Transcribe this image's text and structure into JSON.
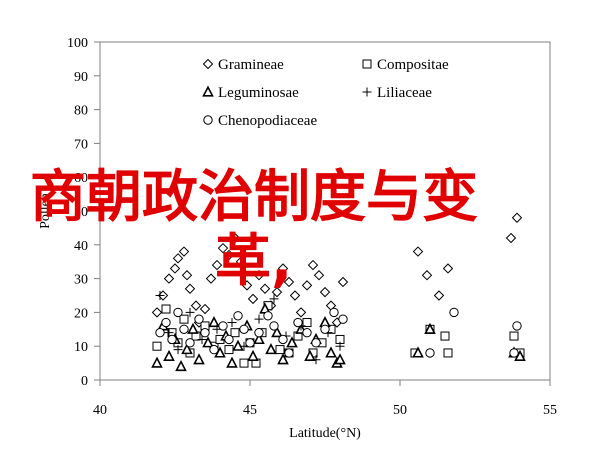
{
  "chart_data": {
    "type": "scatter",
    "xlabel": "Latitude(°N)",
    "ylabel": "Pollen",
    "xlim": [
      40,
      55
    ],
    "ylim": [
      0,
      100
    ],
    "xticks": [
      40,
      45,
      50,
      55
    ],
    "yticks": [
      0,
      10,
      20,
      30,
      40,
      50,
      60,
      70,
      80,
      90,
      100
    ],
    "grid": false,
    "legend_position": "top",
    "series": [
      {
        "name": "Gramineae",
        "marker": "diamond",
        "points": [
          [
            41.9,
            20
          ],
          [
            42.1,
            25
          ],
          [
            42.3,
            30
          ],
          [
            42.5,
            33
          ],
          [
            42.6,
            36
          ],
          [
            42.8,
            38
          ],
          [
            42.9,
            31
          ],
          [
            43.0,
            27
          ],
          [
            43.2,
            22
          ],
          [
            43.3,
            17
          ],
          [
            43.5,
            21
          ],
          [
            43.7,
            30
          ],
          [
            43.9,
            34
          ],
          [
            44.1,
            39
          ],
          [
            44.3,
            37
          ],
          [
            44.5,
            42
          ],
          [
            44.7,
            35
          ],
          [
            44.9,
            28
          ],
          [
            45.1,
            24
          ],
          [
            45.3,
            31
          ],
          [
            45.5,
            27
          ],
          [
            45.7,
            22
          ],
          [
            45.9,
            26
          ],
          [
            46.1,
            33
          ],
          [
            46.3,
            29
          ],
          [
            46.5,
            25
          ],
          [
            46.7,
            20
          ],
          [
            46.9,
            28
          ],
          [
            47.1,
            34
          ],
          [
            47.3,
            31
          ],
          [
            47.5,
            26
          ],
          [
            47.7,
            22
          ],
          [
            47.9,
            17
          ],
          [
            48.1,
            29
          ],
          [
            50.6,
            38
          ],
          [
            50.9,
            31
          ],
          [
            51.3,
            25
          ],
          [
            51.6,
            33
          ],
          [
            53.9,
            48
          ],
          [
            53.7,
            42
          ]
        ]
      },
      {
        "name": "Compositae",
        "marker": "square",
        "points": [
          [
            41.9,
            10
          ],
          [
            42.2,
            21
          ],
          [
            42.4,
            14
          ],
          [
            42.6,
            11
          ],
          [
            42.8,
            18
          ],
          [
            43.0,
            8
          ],
          [
            43.2,
            13
          ],
          [
            43.5,
            16
          ],
          [
            43.8,
            10
          ],
          [
            44.0,
            12
          ],
          [
            44.3,
            9
          ],
          [
            44.5,
            14
          ],
          [
            44.8,
            5
          ],
          [
            45.0,
            11
          ],
          [
            45.2,
            5
          ],
          [
            45.4,
            14
          ],
          [
            45.6,
            22
          ],
          [
            46.0,
            9
          ],
          [
            46.3,
            8
          ],
          [
            46.6,
            13
          ],
          [
            46.9,
            17
          ],
          [
            47.1,
            8
          ],
          [
            47.4,
            11
          ],
          [
            47.7,
            15
          ],
          [
            48.0,
            12
          ],
          [
            50.5,
            8
          ],
          [
            51.0,
            15
          ],
          [
            51.5,
            13
          ],
          [
            51.6,
            8
          ],
          [
            53.8,
            13
          ],
          [
            54.0,
            8
          ]
        ]
      },
      {
        "name": "Leguminosae",
        "marker": "triangle",
        "points": [
          [
            41.9,
            5
          ],
          [
            42.1,
            16
          ],
          [
            42.3,
            7
          ],
          [
            42.5,
            12
          ],
          [
            42.7,
            4
          ],
          [
            42.9,
            9
          ],
          [
            43.1,
            15
          ],
          [
            43.3,
            6
          ],
          [
            43.6,
            11
          ],
          [
            43.8,
            17
          ],
          [
            44.0,
            8
          ],
          [
            44.2,
            13
          ],
          [
            44.4,
            5
          ],
          [
            44.6,
            10
          ],
          [
            44.9,
            16
          ],
          [
            45.1,
            7
          ],
          [
            45.3,
            12
          ],
          [
            45.5,
            21
          ],
          [
            45.7,
            9
          ],
          [
            45.9,
            14
          ],
          [
            46.1,
            6
          ],
          [
            46.4,
            11
          ],
          [
            46.7,
            15
          ],
          [
            47.0,
            7
          ],
          [
            47.2,
            12
          ],
          [
            47.5,
            17
          ],
          [
            47.7,
            8
          ],
          [
            47.9,
            5
          ],
          [
            48.0,
            6
          ],
          [
            50.6,
            8
          ],
          [
            51.0,
            15
          ],
          [
            53.8,
            8
          ],
          [
            54.0,
            7
          ]
        ]
      },
      {
        "name": "Liliaceae",
        "marker": "plus",
        "points": [
          [
            42.0,
            25
          ],
          [
            42.3,
            14
          ],
          [
            42.6,
            9
          ],
          [
            43.0,
            20
          ],
          [
            43.4,
            12
          ],
          [
            43.9,
            15
          ],
          [
            44.4,
            17
          ],
          [
            44.8,
            10
          ],
          [
            45.3,
            18
          ],
          [
            45.8,
            24
          ],
          [
            46.2,
            13
          ],
          [
            46.7,
            16
          ],
          [
            47.2,
            6
          ],
          [
            47.6,
            14
          ],
          [
            48.0,
            10
          ]
        ]
      },
      {
        "name": "Chenopodiaceae",
        "marker": "circle",
        "points": [
          [
            42.0,
            14
          ],
          [
            42.2,
            17
          ],
          [
            42.4,
            12
          ],
          [
            42.6,
            20
          ],
          [
            42.8,
            15
          ],
          [
            43.0,
            11
          ],
          [
            43.3,
            18
          ],
          [
            43.5,
            14
          ],
          [
            43.8,
            9
          ],
          [
            44.1,
            16
          ],
          [
            44.3,
            12
          ],
          [
            44.6,
            19
          ],
          [
            44.8,
            15
          ],
          [
            45.0,
            11
          ],
          [
            45.3,
            14
          ],
          [
            45.6,
            19
          ],
          [
            45.8,
            16
          ],
          [
            46.1,
            12
          ],
          [
            46.3,
            8
          ],
          [
            46.6,
            17
          ],
          [
            46.9,
            14
          ],
          [
            47.2,
            11
          ],
          [
            47.5,
            15
          ],
          [
            47.8,
            20
          ],
          [
            48.1,
            18
          ],
          [
            51.0,
            8
          ],
          [
            51.8,
            20
          ],
          [
            53.9,
            16
          ],
          [
            53.8,
            8
          ]
        ]
      }
    ]
  },
  "overlay": {
    "line1": "商朝政治制度与变",
    "line2": "革,"
  }
}
